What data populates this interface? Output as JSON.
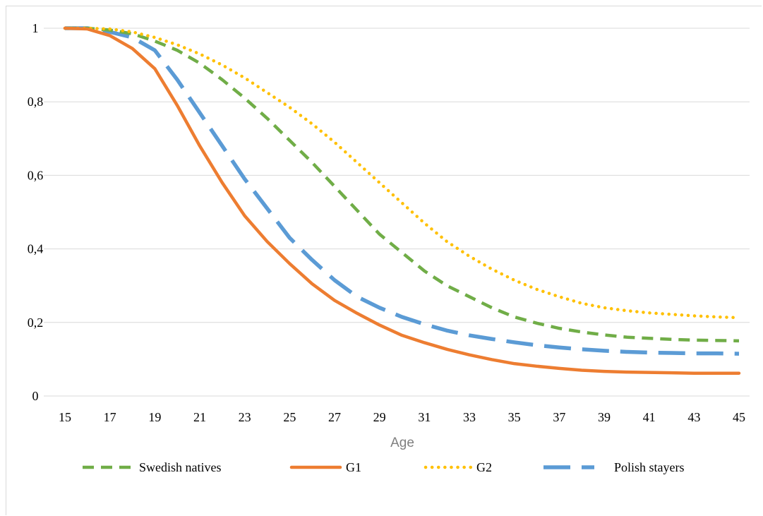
{
  "chart_data": {
    "type": "line",
    "title": "",
    "xlabel": "Age",
    "ylabel": "",
    "x_ticks": [
      "15",
      "17",
      "19",
      "21",
      "23",
      "25",
      "27",
      "29",
      "31",
      "33",
      "35",
      "37",
      "39",
      "41",
      "43",
      "45"
    ],
    "y_ticks": [
      "0",
      "0,2",
      "0,4",
      "0,6",
      "0,8",
      "1"
    ],
    "xlim": [
      15,
      45
    ],
    "ylim": [
      0,
      1
    ],
    "grid": "horizontal",
    "legend_position": "bottom",
    "x": [
      15,
      16,
      17,
      18,
      19,
      20,
      21,
      22,
      23,
      24,
      25,
      26,
      27,
      28,
      29,
      30,
      31,
      32,
      33,
      34,
      35,
      36,
      37,
      38,
      39,
      40,
      41,
      42,
      43,
      44,
      45
    ],
    "series": [
      {
        "name": "Swedish natives",
        "style": "dashed",
        "color": "#70ad47",
        "values": [
          1,
          1,
          0.995,
          0.985,
          0.965,
          0.94,
          0.905,
          0.86,
          0.81,
          0.755,
          0.695,
          0.635,
          0.57,
          0.505,
          0.44,
          0.39,
          0.34,
          0.3,
          0.27,
          0.24,
          0.215,
          0.198,
          0.184,
          0.174,
          0.166,
          0.16,
          0.157,
          0.154,
          0.152,
          0.151,
          0.15
        ]
      },
      {
        "name": "G1",
        "style": "solid",
        "color": "#ed7d31",
        "values": [
          1,
          0.998,
          0.98,
          0.945,
          0.89,
          0.79,
          0.68,
          0.58,
          0.49,
          0.42,
          0.36,
          0.305,
          0.26,
          0.225,
          0.193,
          0.165,
          0.145,
          0.127,
          0.112,
          0.099,
          0.088,
          0.081,
          0.075,
          0.07,
          0.067,
          0.065,
          0.064,
          0.063,
          0.062,
          0.062,
          0.062
        ]
      },
      {
        "name": "G2",
        "style": "dotted",
        "color": "#ffc000",
        "values": [
          1,
          1,
          0.998,
          0.99,
          0.975,
          0.955,
          0.93,
          0.9,
          0.865,
          0.825,
          0.785,
          0.74,
          0.69,
          0.635,
          0.58,
          0.525,
          0.47,
          0.42,
          0.38,
          0.345,
          0.315,
          0.29,
          0.27,
          0.252,
          0.24,
          0.232,
          0.226,
          0.222,
          0.218,
          0.215,
          0.213
        ]
      },
      {
        "name": "Polish stayers",
        "style": "long-dash",
        "color": "#5b9bd5",
        "values": [
          1,
          1,
          0.99,
          0.975,
          0.94,
          0.86,
          0.77,
          0.68,
          0.59,
          0.51,
          0.43,
          0.37,
          0.315,
          0.27,
          0.24,
          0.215,
          0.195,
          0.178,
          0.165,
          0.155,
          0.146,
          0.138,
          0.132,
          0.127,
          0.123,
          0.12,
          0.118,
          0.117,
          0.116,
          0.116,
          0.115
        ]
      }
    ]
  }
}
